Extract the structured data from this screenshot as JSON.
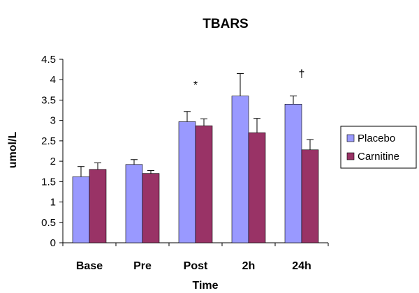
{
  "chart_data": {
    "type": "bar",
    "title": "TBARS",
    "xlabel": "Time",
    "ylabel": "umol/L",
    "ylim": [
      0,
      4.5
    ],
    "y_ticks": [
      "0",
      "0.5",
      "1",
      "1.5",
      "2",
      "2.5",
      "3",
      "3.5",
      "4",
      "4.5"
    ],
    "categories": [
      "Base",
      "Pre",
      "Post",
      "2h",
      "24h"
    ],
    "series": [
      {
        "name": "Placebo",
        "color": "#9999ff",
        "values": [
          1.62,
          1.92,
          2.97,
          3.6,
          3.4
        ],
        "errors": [
          0.25,
          0.12,
          0.25,
          0.55,
          0.2
        ]
      },
      {
        "name": "Carnitine",
        "color": "#993366",
        "values": [
          1.8,
          1.7,
          2.87,
          2.7,
          2.28
        ],
        "errors": [
          0.16,
          0.07,
          0.17,
          0.35,
          0.25
        ]
      }
    ],
    "annotations": [
      {
        "category": "Post",
        "text": "*"
      },
      {
        "category": "24h",
        "text": "†"
      }
    ],
    "legend": "right",
    "grid": false
  }
}
